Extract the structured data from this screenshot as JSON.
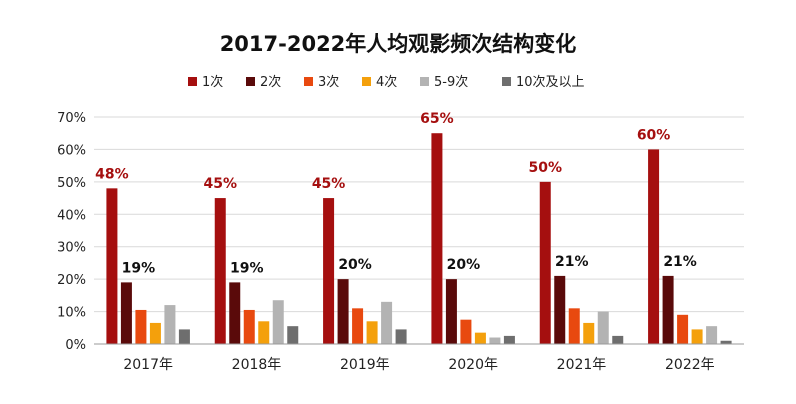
{
  "chart_data": {
    "type": "bar",
    "title": "2017-2022年人均观影频次结构变化",
    "categories": [
      "2017年",
      "2018年",
      "2019年",
      "2020年",
      "2021年",
      "2022年"
    ],
    "series": [
      {
        "name": "1次",
        "color": "#A50F0F",
        "values": [
          48,
          45,
          45,
          65,
          50,
          60
        ]
      },
      {
        "name": "2次",
        "color": "#5A0A0A",
        "values": [
          19,
          19,
          20,
          20,
          21,
          21
        ]
      },
      {
        "name": "3次",
        "color": "#E8490F",
        "values": [
          10.5,
          10.5,
          11,
          7.5,
          11,
          9
        ]
      },
      {
        "name": "4次",
        "color": "#F4A00C",
        "values": [
          6.5,
          7,
          7,
          3.5,
          6.5,
          4.5
        ]
      },
      {
        "name": "5-9次",
        "color": "#B3B3B3",
        "values": [
          12,
          13.5,
          13,
          2,
          10,
          5.5
        ]
      },
      {
        "name": "10次及以上",
        "color": "#6E6E6E",
        "values": [
          4.5,
          5.5,
          4.5,
          2.5,
          2.5,
          1
        ]
      }
    ],
    "data_labels": [
      {
        "category": "2017年",
        "series": "1次",
        "text": "48%",
        "color": "#A50F0F"
      },
      {
        "category": "2017年",
        "series": "2次",
        "text": "19%",
        "color": "#111111"
      },
      {
        "category": "2018年",
        "series": "1次",
        "text": "45%",
        "color": "#A50F0F"
      },
      {
        "category": "2018年",
        "series": "2次",
        "text": "19%",
        "color": "#111111"
      },
      {
        "category": "2019年",
        "series": "1次",
        "text": "45%",
        "color": "#A50F0F"
      },
      {
        "category": "2019年",
        "series": "2次",
        "text": "20%",
        "color": "#111111"
      },
      {
        "category": "2020年",
        "series": "1次",
        "text": "65%",
        "color": "#A50F0F"
      },
      {
        "category": "2020年",
        "series": "2次",
        "text": "20%",
        "color": "#111111"
      },
      {
        "category": "2021年",
        "series": "1次",
        "text": "50%",
        "color": "#A50F0F"
      },
      {
        "category": "2021年",
        "series": "2次",
        "text": "21%",
        "color": "#111111"
      },
      {
        "category": "2022年",
        "series": "1次",
        "text": "60%",
        "color": "#A50F0F"
      },
      {
        "category": "2022年",
        "series": "2次",
        "text": "21%",
        "color": "#111111"
      }
    ],
    "ylim": [
      0,
      70
    ],
    "yticks": [
      "0%",
      "10%",
      "20%",
      "30%",
      "40%",
      "50%",
      "60%",
      "70%"
    ],
    "xlabel": "",
    "ylabel": "",
    "grid": true,
    "legend_position": "top"
  }
}
